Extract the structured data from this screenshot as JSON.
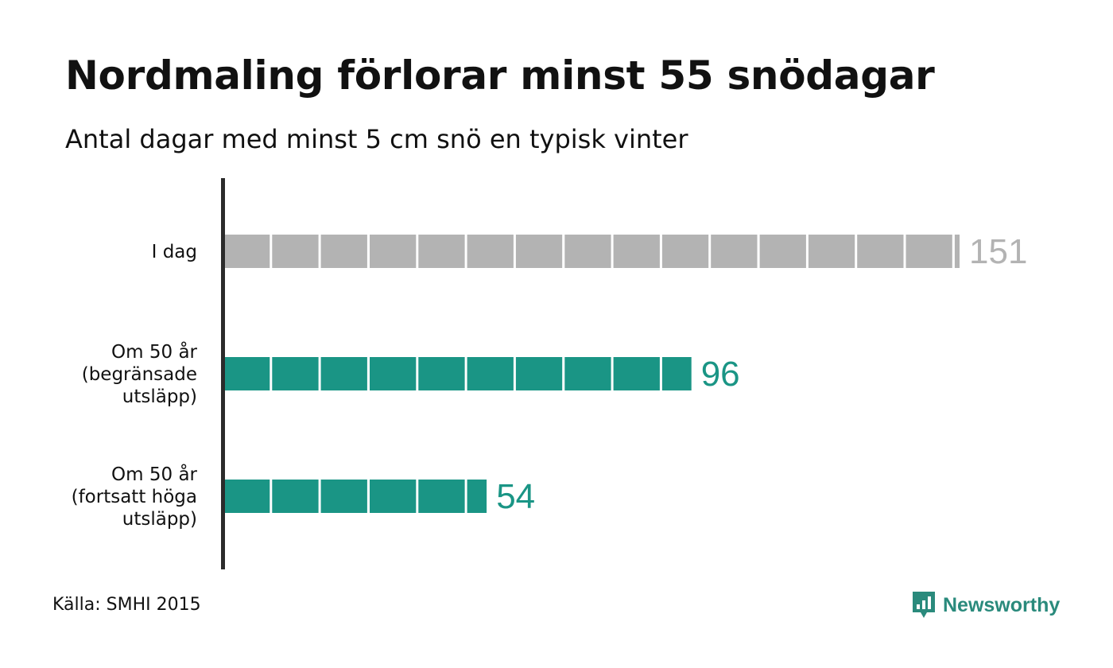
{
  "header": {
    "title": "Nordmaling förlorar minst 55 snödagar",
    "subtitle": "Antal dagar med minst 5 cm snö en typisk vinter"
  },
  "footer": {
    "source": "Källa: SMHI 2015",
    "brand_name": "Newsworthy",
    "brand_icon": "newsworthy-logo-icon"
  },
  "colors": {
    "current": "#b3b3b3",
    "current_label": "#b3b3b3",
    "future": "#1a9585",
    "future_label": "#1a9585",
    "axis": "#2b2b2b",
    "brand": "#2a8a7c"
  },
  "chart_data": {
    "type": "bar",
    "orientation": "horizontal",
    "title": "Nordmaling förlorar minst 55 snödagar",
    "subtitle": "Antal dagar med minst 5 cm snö en typisk vinter",
    "categories": [
      [
        "I dag"
      ],
      [
        "Om 50 år",
        "(begränsade",
        "utsläpp)"
      ],
      [
        "Om 50 år",
        "(fortsatt höga",
        "utsläpp)"
      ]
    ],
    "values": [
      151,
      96,
      54
    ],
    "value_labels": [
      "151",
      "96",
      "54"
    ],
    "bar_colors": [
      "#b3b3b3",
      "#1a9585",
      "#1a9585"
    ],
    "segment_size": 10,
    "xlim": [
      0,
      151
    ],
    "grid": false,
    "legend": "none"
  }
}
